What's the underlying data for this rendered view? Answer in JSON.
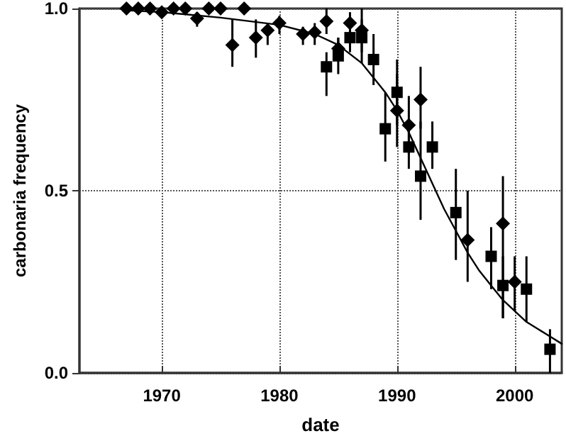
{
  "chart_data": {
    "type": "scatter",
    "xlabel": "date",
    "ylabel": "carbonaria frequency",
    "xlim": [
      1963,
      2004
    ],
    "ylim": [
      0,
      1
    ],
    "xticks": [
      1970,
      1980,
      1990,
      2000
    ],
    "yticks": [
      {
        "value": 0,
        "label": "0.0"
      },
      {
        "value": 0.5,
        "label": "0.5"
      },
      {
        "value": 1,
        "label": "1.0"
      }
    ],
    "grid": true,
    "line_style": "dotted",
    "series": [
      {
        "marker": "diamond",
        "color": "#000000",
        "x": [
          1967,
          1968,
          1969,
          1970,
          1971,
          1972,
          1973,
          1974,
          1975,
          1976,
          1977,
          1978,
          1979,
          1980,
          1982,
          1983,
          1984,
          1985,
          1986,
          1987,
          1990,
          1991,
          1992,
          1996,
          1999,
          2000
        ],
        "values": [
          1,
          1,
          1,
          0.99,
          1,
          1,
          0.973,
          1,
          1,
          0.9,
          1,
          0.92,
          0.94,
          0.96,
          0.93,
          0.935,
          0.965,
          0.89,
          0.96,
          0.94,
          0.72,
          0.68,
          0.75,
          0.365,
          0.41,
          0.25
        ],
        "errors": [
          null,
          null,
          null,
          null,
          null,
          null,
          [
            0.95,
            0.99
          ],
          null,
          null,
          [
            0.84,
            0.97
          ],
          null,
          [
            0.865,
            0.97
          ],
          [
            0.9,
            0.96
          ],
          [
            0.93,
            0.98
          ],
          [
            0.9,
            0.95
          ],
          [
            0.9,
            0.96
          ],
          [
            0.93,
            1
          ],
          [
            0.86,
            0.92
          ],
          [
            0.93,
            0.99
          ],
          [
            0.88,
            1
          ],
          [
            0.62,
            0.82
          ],
          [
            0.6,
            0.76
          ],
          [
            0.67,
            0.84
          ],
          [
            0.25,
            0.5
          ],
          [
            0.15,
            0.54
          ],
          [
            0.17,
            0.32
          ]
        ]
      },
      {
        "marker": "square",
        "color": "#000000",
        "x": [
          1984,
          1985,
          1986,
          1987,
          1988,
          1989,
          1990,
          1991,
          1992,
          1993,
          1995,
          1998,
          1999,
          2001,
          2003
        ],
        "values": [
          0.84,
          0.87,
          0.92,
          0.92,
          0.86,
          0.67,
          0.77,
          0.62,
          0.54,
          0.62,
          0.44,
          0.32,
          0.24,
          0.23,
          0.065
        ],
        "errors": [
          [
            0.76,
            0.88
          ],
          [
            0.82,
            0.92
          ],
          [
            0.88,
            0.96
          ],
          [
            0.85,
            0.97
          ],
          [
            0.79,
            0.93
          ],
          [
            0.58,
            0.77
          ],
          [
            0.68,
            0.86
          ],
          [
            0.56,
            0.69
          ],
          [
            0.42,
            0.69
          ],
          [
            0.56,
            0.69
          ],
          [
            0.31,
            0.56
          ],
          [
            0.23,
            0.4
          ],
          [
            0.15,
            0.32
          ],
          [
            0.14,
            0.32
          ],
          [
            0,
            0.12
          ]
        ]
      },
      {
        "type": "line",
        "marker": "none",
        "line_style": "solid",
        "color": "#000000",
        "x": [
          1967,
          1970,
          1975,
          1980,
          1983,
          1985,
          1987,
          1989,
          1990,
          1991,
          1992,
          1993,
          1994,
          1995,
          1996,
          1997,
          1998,
          1999,
          2000,
          2001,
          2002,
          2003,
          2004
        ],
        "values": [
          0.995,
          0.99,
          0.975,
          0.955,
          0.93,
          0.9,
          0.85,
          0.77,
          0.72,
          0.66,
          0.59,
          0.52,
          0.45,
          0.39,
          0.33,
          0.28,
          0.24,
          0.2,
          0.17,
          0.14,
          0.12,
          0.1,
          0.08
        ]
      }
    ]
  }
}
